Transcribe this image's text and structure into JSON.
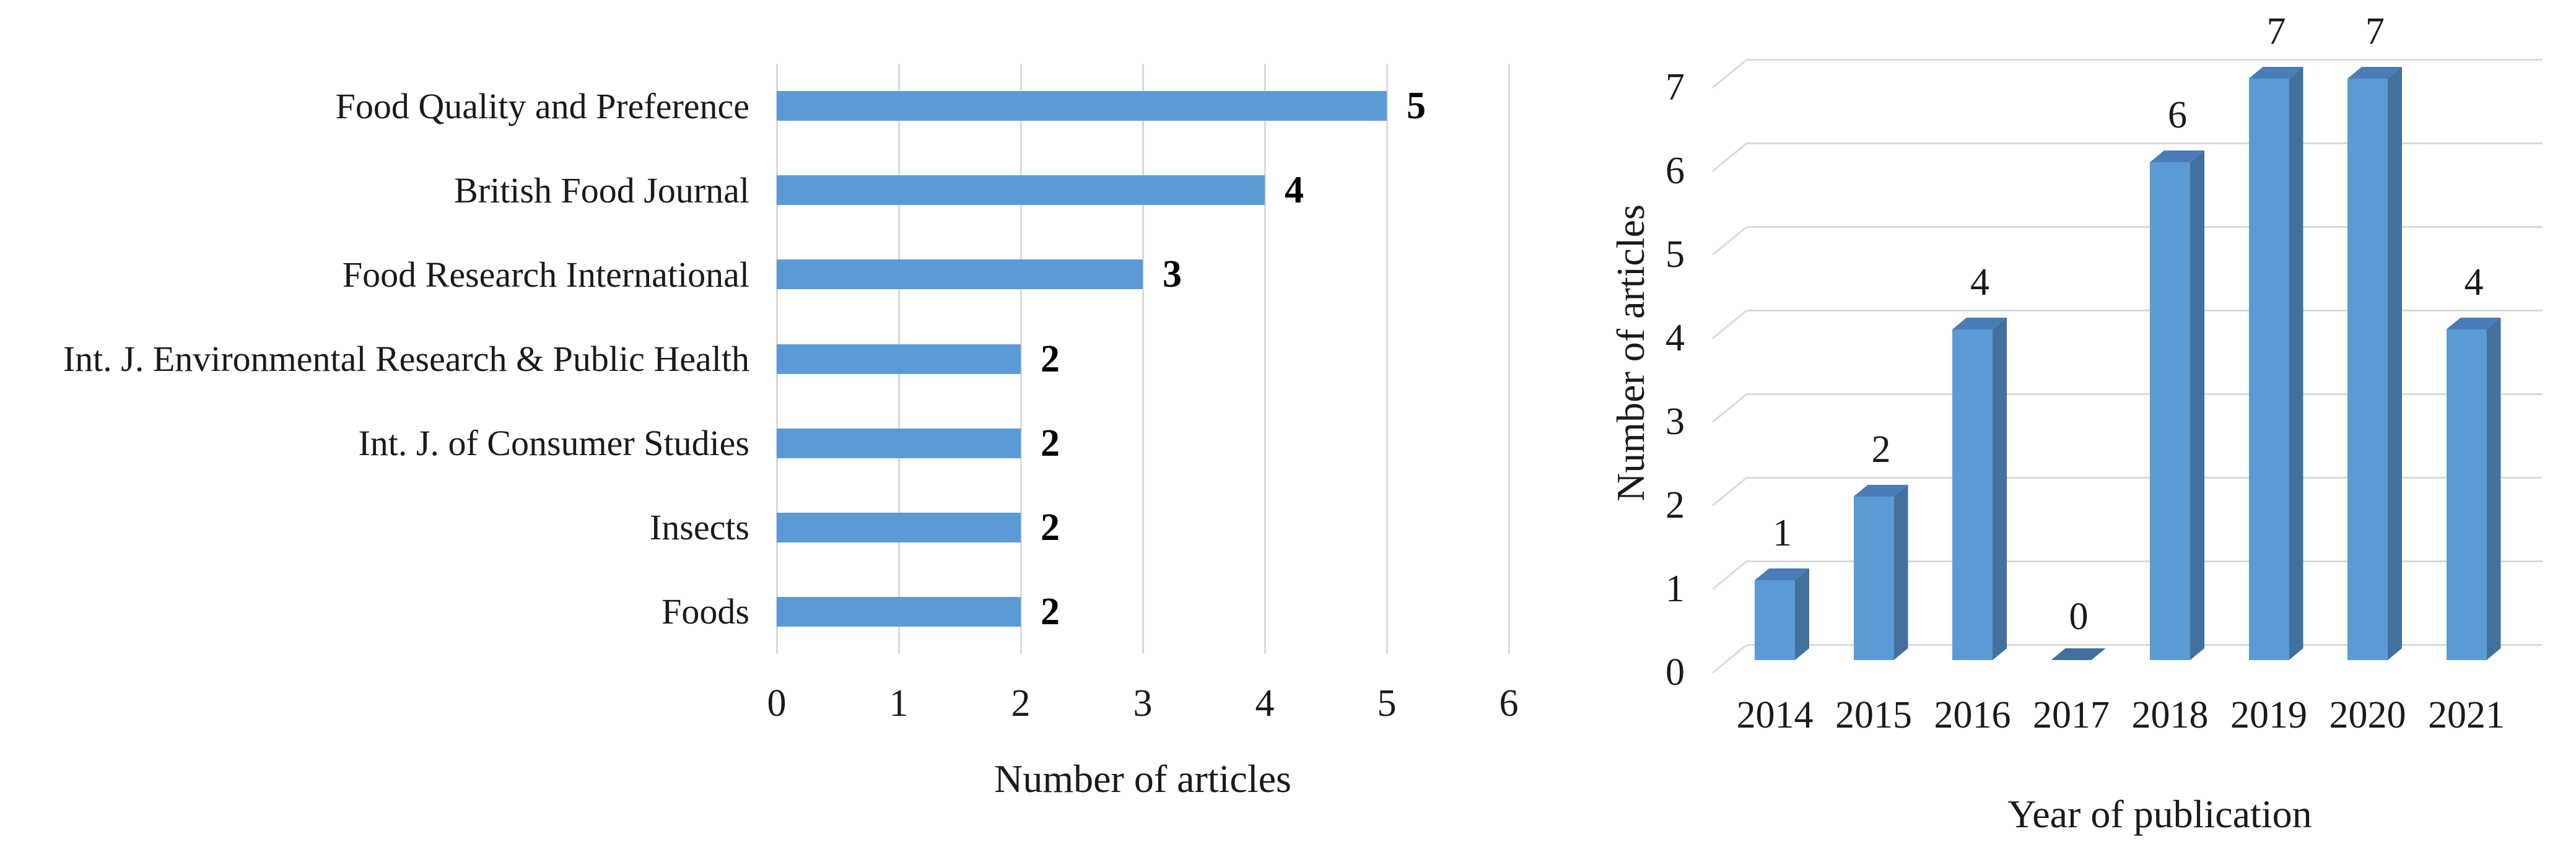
{
  "figure": {
    "background": "#ffffff",
    "text_color": "#1a1a1a",
    "gridline_color": "#d9d9d9"
  },
  "chart_data": [
    {
      "id": "journals-chart",
      "type": "bar",
      "orientation": "horizontal",
      "title": "",
      "categories": [
        "Food Quality and Preference",
        "British Food Journal",
        "Food Research International",
        "Int. J. Environmental Research & Public Health",
        "Int. J. of Consumer Studies",
        "Insects",
        "Foods"
      ],
      "values": [
        5,
        4,
        3,
        2,
        2,
        2,
        2
      ],
      "data_labels": [
        "5",
        "4",
        "3",
        "2",
        "2",
        "2",
        "2"
      ],
      "xlabel": "Number of articles",
      "xticks": [
        "0",
        "1",
        "2",
        "3",
        "4",
        "5",
        "6"
      ],
      "xlim": [
        0,
        6
      ],
      "grid": true,
      "legend": false,
      "bar_color": "#5b9bd5"
    },
    {
      "id": "years-chart",
      "type": "bar",
      "orientation": "vertical",
      "style": "3d",
      "title": "",
      "categories": [
        "2014",
        "2015",
        "2016",
        "2017",
        "2018",
        "2019",
        "2020",
        "2021"
      ],
      "values": [
        1,
        2,
        4,
        0,
        6,
        7,
        7,
        4
      ],
      "data_labels": [
        "1",
        "2",
        "4",
        "0",
        "6",
        "7",
        "7",
        "4"
      ],
      "xlabel": "Year of publication",
      "ylabel": "Number of articles",
      "yticks": [
        "0",
        "1",
        "2",
        "3",
        "4",
        "5",
        "6",
        "7"
      ],
      "ylim": [
        0,
        7
      ],
      "grid": true,
      "legend": false,
      "bar_front_color": "#5b9bd5",
      "bar_side_color": "#41719c",
      "bar_top_color": "#4a7db8"
    }
  ]
}
